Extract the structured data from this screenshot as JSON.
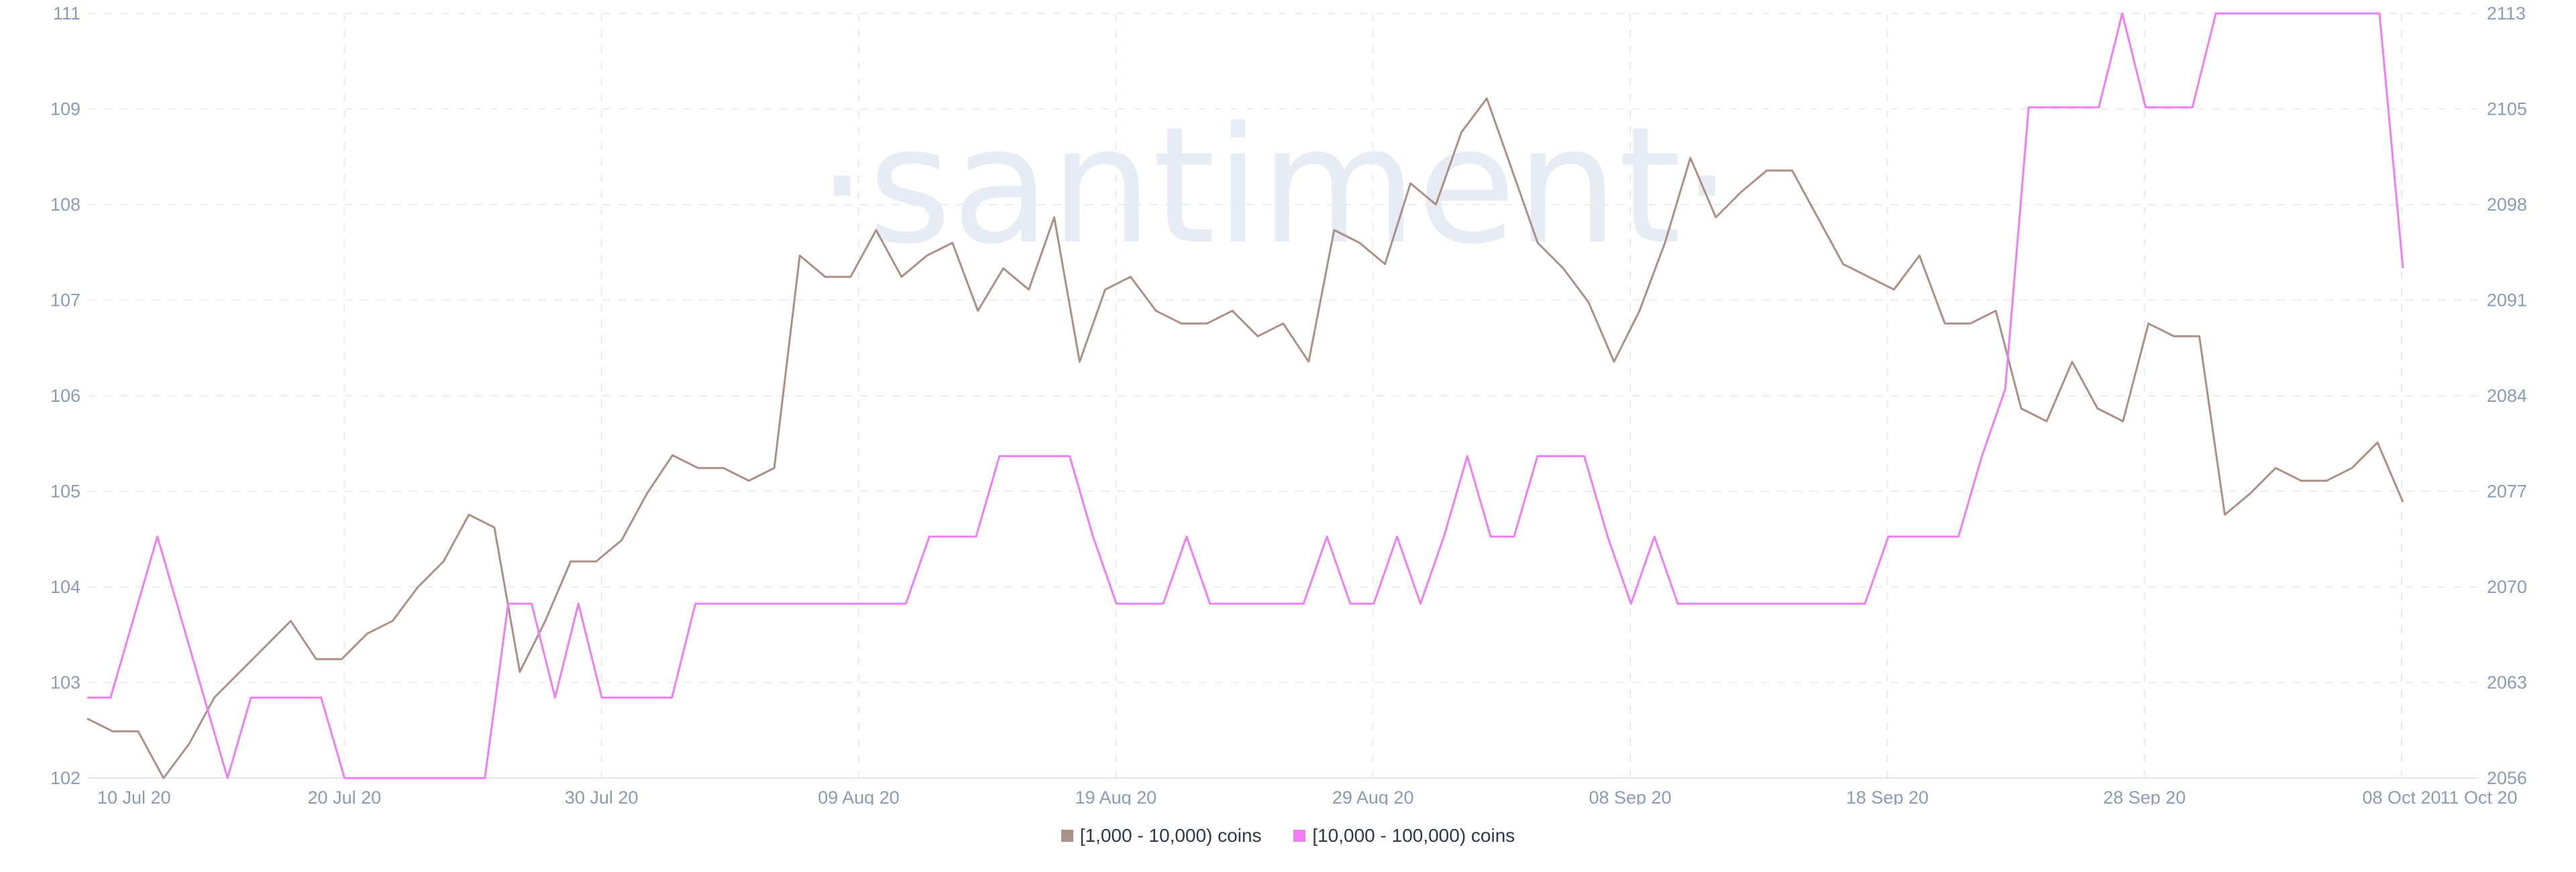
{
  "chart_data": {
    "type": "line",
    "title": "",
    "watermark": "·santiment·",
    "x_ticks": [
      "10 Jul 20",
      "20 Jul 20",
      "30 Jul 20",
      "09 Aug 20",
      "19 Aug 20",
      "29 Aug 20",
      "08 Sep 20",
      "18 Sep 20",
      "28 Sep 20",
      "08 Oct 20",
      "11 Oct 20"
    ],
    "y_left": {
      "ticks": [
        "102",
        "103",
        "104",
        "105",
        "106",
        "107",
        "108",
        "109",
        "111"
      ],
      "range": [
        102,
        111
      ]
    },
    "y_right": {
      "ticks": [
        "2056",
        "2063",
        "2070",
        "2077",
        "2084",
        "2091",
        "2098",
        "2105",
        "2113"
      ],
      "range": [
        2056,
        2113
      ]
    },
    "grid": true,
    "legend_position": "bottom-center",
    "series": [
      {
        "name": "[1,000 - 10,000) coins",
        "color": "#ab9088",
        "axis": "left",
        "values": [
          102.7,
          102.55,
          102.55,
          102.0,
          102.4,
          102.95,
          103.25,
          103.55,
          103.85,
          103.4,
          103.4,
          103.7,
          103.85,
          104.25,
          104.55,
          105.1,
          104.95,
          103.25,
          103.85,
          104.55,
          104.55,
          104.8,
          105.35,
          105.8,
          105.65,
          105.65,
          105.5,
          105.65,
          108.15,
          107.9,
          107.9,
          108.45,
          107.9,
          108.15,
          108.3,
          107.5,
          108.0,
          107.75,
          108.6,
          106.9,
          107.75,
          107.9,
          107.5,
          107.35,
          107.35,
          107.5,
          107.2,
          107.35,
          106.9,
          108.45,
          108.3,
          108.05,
          109.0,
          108.75,
          109.6,
          110.0,
          109.15,
          108.3,
          108.0,
          107.6,
          106.9,
          107.5,
          108.3,
          109.3,
          108.6,
          108.9,
          109.15,
          109.15,
          108.6,
          108.05,
          107.9,
          107.75,
          108.15,
          107.35,
          107.35,
          107.5,
          106.35,
          106.2,
          106.9,
          106.35,
          106.2,
          107.35,
          107.2,
          107.2,
          105.1,
          105.35,
          105.65,
          105.5,
          105.5,
          105.65,
          105.95,
          105.25
        ]
      },
      {
        "name": "[10,000 - 100,000) coins",
        "color": "#ef7ef5",
        "axis": "right",
        "values": [
          2062,
          2062,
          2068,
          2074,
          2068,
          2062,
          2056,
          2062,
          2062,
          2062,
          2062,
          2056,
          2056,
          2056,
          2056,
          2056,
          2056,
          2056,
          2069,
          2069,
          2062,
          2069,
          2062,
          2062,
          2062,
          2062,
          2069,
          2069,
          2069,
          2069,
          2069,
          2069,
          2069,
          2069,
          2069,
          2069,
          2074,
          2074,
          2074,
          2080,
          2080,
          2080,
          2080,
          2074,
          2069,
          2069,
          2069,
          2074,
          2069,
          2069,
          2069,
          2069,
          2069,
          2074,
          2069,
          2069,
          2074,
          2069,
          2074,
          2080,
          2074,
          2074,
          2080,
          2080,
          2080,
          2074,
          2069,
          2074,
          2069,
          2069,
          2069,
          2069,
          2069,
          2069,
          2069,
          2069,
          2069,
          2074,
          2074,
          2074,
          2074,
          2080,
          2085,
          2106,
          2106,
          2106,
          2106,
          2113,
          2106,
          2106,
          2106,
          2113,
          2113,
          2113,
          2113,
          2113,
          2113,
          2113,
          2113,
          2094
        ]
      }
    ]
  },
  "legend": {
    "items": [
      {
        "label": "[1,000 - 10,000) coins",
        "color": "#ab9088"
      },
      {
        "label": "[10,000 - 100,000) coins",
        "color": "#ef7ef5"
      }
    ]
  }
}
